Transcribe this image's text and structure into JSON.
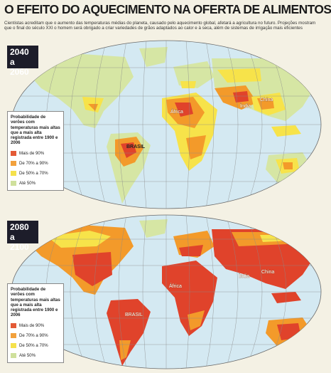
{
  "title": "O EFEITO DO AQUECIMENTO NA OFERTA DE ALIMENTOS",
  "intro": "Cientistas acreditam que o aumento das temperaturas médias do planeta, causado pelo aquecimento global, afetará a agricultura no futuro. Projeções mostram que o final do século XXI o homem será obrigado a criar variedades de grãos adaptados ao calor e à seca, além de sistemas de irrigação mais eficientes",
  "colors": {
    "water": "#d4e9f2",
    "over90": "#e0432b",
    "from70to90": "#f39a2a",
    "from50to70": "#f7e34a",
    "upto50": "#d6e6a4",
    "legend_swatch_over90": "#e35a36",
    "legend_swatch_70_90": "#f2a13c",
    "legend_swatch_50_70": "#f5e14c",
    "legend_swatch_upto50": "#cfe09c"
  },
  "panels": [
    {
      "period": "2040 a 2060",
      "map_labels": {
        "africa": "África",
        "india": "Índia",
        "china": "China",
        "brasil": "BRASIL"
      },
      "legend": {
        "title": "Probabilidade de verões com temperaturas mais altas que a mais alta registrada entre 1900 e 2006",
        "items": [
          "Mais de 90%",
          "De 70% a 90%",
          "De 50% a 70%",
          "Até 50%"
        ]
      }
    },
    {
      "period": "2080 a 2100",
      "map_labels": {
        "africa": "África",
        "india": "Índia",
        "china": "China",
        "brasil": "BRASIL"
      },
      "legend": {
        "title": "Probabilidade de verões com temperaturas mais altas que a mais alta registrada entre 1900 e 2006",
        "items": [
          "Mais de 90%",
          "De 70% a 90%",
          "De 50% a 70%",
          "Até 50%"
        ]
      }
    }
  ]
}
